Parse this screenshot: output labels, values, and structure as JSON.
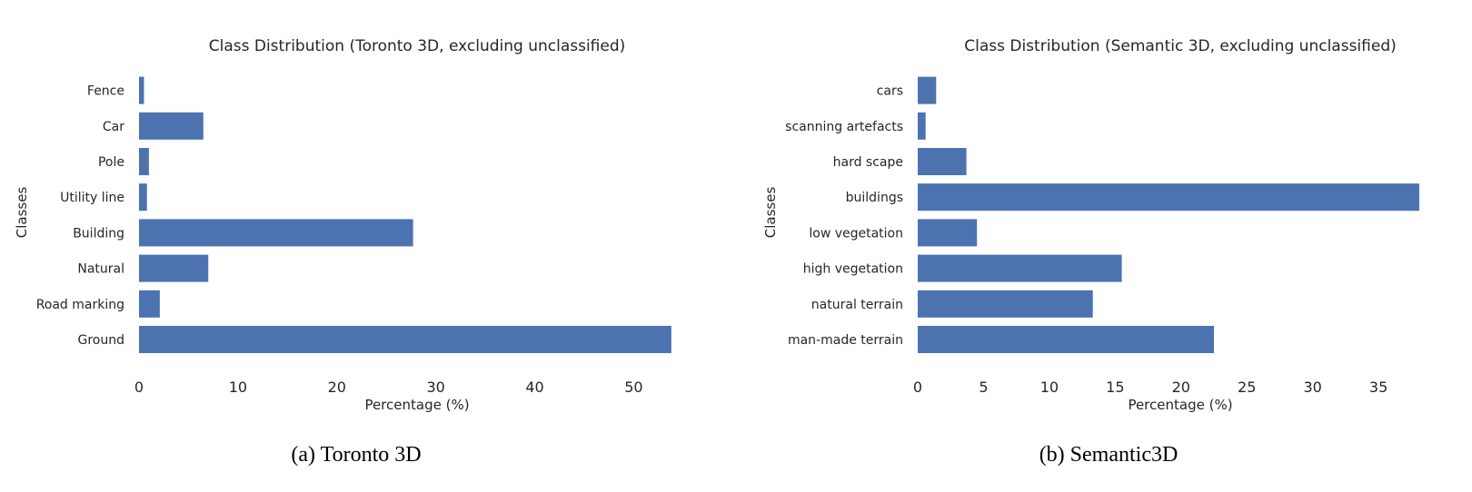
{
  "figures": [
    {
      "caption": "(a) Toronto 3D",
      "chart_data": {
        "type": "bar",
        "orientation": "horizontal",
        "title": "Class Distribution (Toronto 3D, excluding unclassified)",
        "xlabel": "Percentage (%)",
        "ylabel": "Classes",
        "categories": [
          "Fence",
          "Car",
          "Pole",
          "Utility line",
          "Building",
          "Natural",
          "Road marking",
          "Ground"
        ],
        "values": [
          0.5,
          6.5,
          1.0,
          0.8,
          27.7,
          7.0,
          2.1,
          53.8
        ],
        "xlim": [
          0,
          54
        ],
        "xticks": [
          0,
          10,
          20,
          30,
          40,
          50
        ],
        "grid": false,
        "bar_color": "#4c72b0"
      }
    },
    {
      "caption": "(b) Semantic3D",
      "chart_data": {
        "type": "bar",
        "orientation": "horizontal",
        "title": "Class Distribution (Semantic 3D, excluding unclassified)",
        "xlabel": "Percentage (%)",
        "ylabel": "Classes",
        "categories": [
          "cars",
          "scanning artefacts",
          "hard scape",
          "buildings",
          "low vegetation",
          "high vegetation",
          "natural terrain",
          "man-made terrain"
        ],
        "values": [
          1.4,
          0.6,
          3.7,
          38.1,
          4.5,
          15.5,
          13.3,
          22.5
        ],
        "xlim": [
          0,
          38.1
        ],
        "xticks": [
          0,
          5,
          10,
          15,
          20,
          25,
          30,
          35
        ],
        "grid": false,
        "bar_color": "#4c72b0"
      }
    }
  ]
}
